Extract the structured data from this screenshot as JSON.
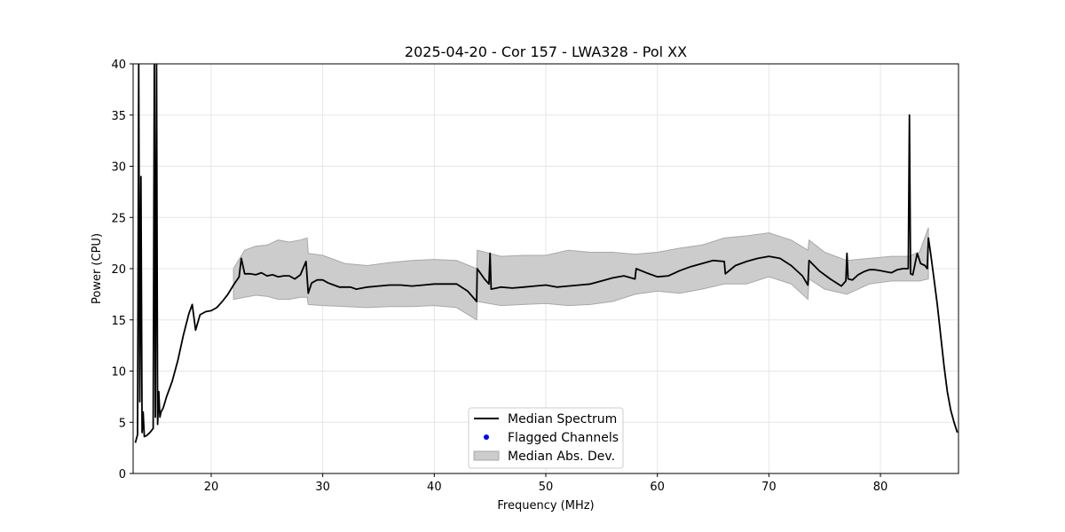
{
  "chart_data": {
    "type": "line",
    "title": "2025-04-20 - Cor 157 - LWA328 - Pol XX",
    "xlabel": "Frequency (MHz)",
    "ylabel": "Power (CPU)",
    "xlim": [
      13,
      87
    ],
    "ylim": [
      0,
      40
    ],
    "xticks": [
      20,
      30,
      40,
      50,
      60,
      70,
      80
    ],
    "yticks": [
      0,
      5,
      10,
      15,
      20,
      25,
      30,
      35,
      40
    ],
    "grid": true,
    "legend": {
      "placement": "bottom-center",
      "entries": [
        "Median Spectrum",
        "Flagged Channels",
        "Median Abs. Dev."
      ]
    },
    "colors": {
      "median": "#000000",
      "flagged": "#0000ff",
      "mad_fill": "#cccccc",
      "mad_edge": "#a8a8a8",
      "grid": "#e6e6e6"
    },
    "series": [
      {
        "name": "Median Spectrum",
        "x": [
          13.2,
          13.4,
          13.5,
          13.6,
          13.7,
          13.8,
          13.9,
          14.0,
          14.2,
          14.5,
          14.8,
          14.9,
          15.0,
          15.1,
          15.2,
          15.3,
          15.4,
          15.5,
          15.7,
          16.0,
          16.5,
          17.0,
          17.5,
          18.0,
          18.3,
          18.6,
          19.0,
          19.5,
          20.0,
          20.5,
          21.0,
          21.5,
          22.0,
          22.5,
          22.7,
          23.0,
          23.5,
          24.0,
          24.5,
          25.0,
          25.5,
          26.0,
          26.5,
          27.0,
          27.5,
          28.0,
          28.5,
          28.7,
          29.0,
          29.5,
          30.0,
          30.5,
          31.0,
          31.5,
          32.0,
          32.5,
          33.0,
          34.0,
          35.0,
          36.0,
          37.0,
          38.0,
          39.0,
          40.0,
          41.0,
          42.0,
          43.0,
          43.8,
          43.85,
          44.5,
          44.9,
          45.0,
          45.1,
          46.0,
          47.0,
          48.0,
          49.0,
          50.0,
          51.0,
          52.0,
          53.0,
          54.0,
          55.0,
          56.0,
          57.0,
          58.0,
          58.1,
          59.0,
          60.0,
          61.0,
          62.0,
          63.0,
          64.0,
          65.0,
          66.0,
          66.1,
          67.0,
          68.0,
          69.0,
          70.0,
          71.0,
          72.0,
          73.0,
          73.5,
          73.6,
          74.5,
          75.5,
          76.5,
          76.9,
          77.0,
          77.1,
          77.5,
          78.0,
          78.5,
          79.0,
          79.5,
          80.0,
          80.5,
          81.0,
          81.5,
          82.0,
          82.3,
          82.5,
          82.6,
          82.7,
          82.9,
          83.3,
          83.6,
          84.0,
          84.2,
          84.3,
          84.5,
          84.8,
          85.1,
          85.4,
          85.7,
          86.0,
          86.3,
          86.6,
          86.9
        ],
        "y": [
          3.0,
          3.8,
          40.0,
          7.0,
          29.0,
          4.0,
          6.0,
          3.6,
          3.7,
          4.0,
          4.4,
          40.0,
          5.5,
          40.0,
          4.8,
          8.0,
          5.5,
          6.0,
          6.4,
          7.5,
          9.0,
          11.0,
          13.5,
          15.6,
          16.5,
          14.0,
          15.5,
          15.8,
          15.9,
          16.2,
          16.8,
          17.5,
          18.4,
          19.2,
          21.0,
          19.5,
          19.5,
          19.4,
          19.6,
          19.3,
          19.4,
          19.2,
          19.3,
          19.3,
          19.0,
          19.4,
          20.7,
          17.6,
          18.6,
          18.9,
          18.9,
          18.6,
          18.4,
          18.2,
          18.2,
          18.2,
          18.0,
          18.2,
          18.3,
          18.4,
          18.4,
          18.3,
          18.4,
          18.5,
          18.5,
          18.5,
          17.8,
          16.8,
          20.0,
          19.0,
          18.5,
          21.5,
          18.0,
          18.2,
          18.1,
          18.2,
          18.3,
          18.4,
          18.2,
          18.3,
          18.4,
          18.5,
          18.8,
          19.1,
          19.3,
          19.0,
          20.0,
          19.6,
          19.2,
          19.3,
          19.8,
          20.2,
          20.5,
          20.8,
          20.7,
          19.5,
          20.3,
          20.7,
          21.0,
          21.2,
          21.0,
          20.3,
          19.3,
          18.4,
          20.8,
          19.8,
          19.0,
          18.3,
          18.8,
          21.5,
          19.0,
          18.9,
          19.4,
          19.7,
          19.9,
          19.9,
          19.8,
          19.7,
          19.6,
          19.9,
          20.0,
          20.0,
          20.0,
          35.0,
          19.5,
          19.4,
          21.5,
          20.5,
          20.3,
          20.0,
          23.0,
          21.5,
          19.0,
          16.5,
          13.5,
          10.5,
          8.0,
          6.2,
          5.0,
          4.0
        ]
      }
    ],
    "mad_band": {
      "name": "Median Abs. Dev.",
      "x": [
        22.0,
        23.0,
        24.0,
        25.0,
        26.0,
        27.0,
        28.0,
        28.6,
        28.7,
        30.0,
        32.0,
        34.0,
        36.0,
        38.0,
        40.0,
        42.0,
        43.8,
        43.85,
        46.0,
        48.0,
        50.0,
        52.0,
        54.0,
        56.0,
        58.0,
        60.0,
        62.0,
        64.0,
        66.0,
        68.0,
        70.0,
        72.0,
        73.5,
        73.6,
        75.0,
        77.0,
        79.0,
        81.0,
        82.5,
        83.5,
        84.3
      ],
      "lower": [
        17.0,
        17.2,
        17.4,
        17.3,
        17.0,
        17.0,
        17.2,
        17.2,
        16.5,
        16.4,
        16.3,
        16.2,
        16.3,
        16.3,
        16.4,
        16.2,
        15.0,
        16.8,
        16.4,
        16.5,
        16.6,
        16.4,
        16.5,
        16.8,
        17.5,
        17.8,
        17.6,
        18.0,
        18.5,
        18.5,
        19.2,
        18.5,
        17.0,
        19.0,
        18.0,
        17.5,
        18.5,
        18.8,
        18.8,
        18.8,
        19.0
      ],
      "upper": [
        20.0,
        21.8,
        22.2,
        22.3,
        22.8,
        22.6,
        22.8,
        23.0,
        21.5,
        21.3,
        20.5,
        20.3,
        20.6,
        20.8,
        20.9,
        20.8,
        20.0,
        21.8,
        21.2,
        21.3,
        21.3,
        21.8,
        21.6,
        21.6,
        21.4,
        21.6,
        22.0,
        22.3,
        23.0,
        23.2,
        23.5,
        22.8,
        21.8,
        22.8,
        21.6,
        20.8,
        21.0,
        21.2,
        21.2,
        21.6,
        24.0
      ]
    }
  }
}
